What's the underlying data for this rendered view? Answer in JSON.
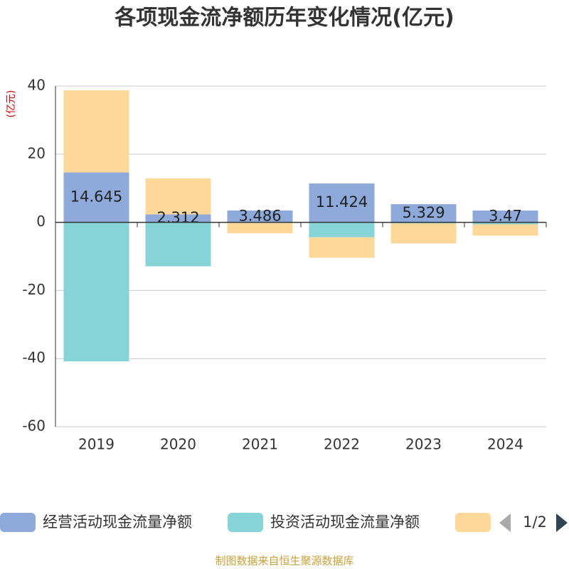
{
  "chart_data": {
    "type": "bar",
    "stacked": true,
    "title": "各项现金流净额历年变化情况(亿元)",
    "y_label": "(亿元)",
    "categories": [
      "2019",
      "2020",
      "2021",
      "2022",
      "2023",
      "2024"
    ],
    "series": [
      {
        "name": "经营活动现金流量净额",
        "color": "#8eaadb",
        "values": [
          14.645,
          2.312,
          3.486,
          11.424,
          5.329,
          3.47
        ],
        "show_labels": true
      },
      {
        "name": "投资活动现金流量净额",
        "color": "#87d4d8",
        "values": [
          -40.8,
          -12.9,
          -0.2,
          -4.4,
          -0.3,
          -0.6
        ]
      },
      {
        "color": "#fdd898",
        "values": [
          24.1,
          10.6,
          -3.0,
          -6.0,
          -5.9,
          -3.3
        ]
      }
    ],
    "ylim": [
      -60,
      40
    ],
    "yticks": [
      -60,
      -40,
      -20,
      0,
      20,
      40
    ],
    "grid": true,
    "legend_page": "1/2",
    "source": "制图数据来自恒生聚源数据库"
  }
}
